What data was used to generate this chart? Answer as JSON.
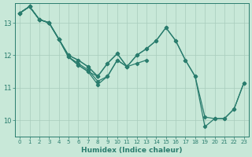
{
  "xlabel": "Humidex (Indice chaleur)",
  "bg_color": "#c8e8d8",
  "line_color": "#2a7d6e",
  "grid_color": "#a8ccbc",
  "xlim": [
    -0.5,
    23.5
  ],
  "ylim": [
    9.5,
    13.6
  ],
  "yticks": [
    10,
    11,
    12,
    13
  ],
  "xtick_labels": [
    "0",
    "1",
    "2",
    "3",
    "4",
    "5",
    "6",
    "7",
    "8",
    "9",
    "10",
    "11",
    "12",
    "13",
    "14",
    "15",
    "16",
    "17",
    "18",
    "19",
    "20",
    "21",
    "22",
    "23"
  ],
  "lines": [
    {
      "x": [
        0,
        1,
        2,
        3,
        4,
        5,
        6,
        7,
        8,
        9,
        10,
        11,
        12,
        13,
        14,
        15,
        16,
        17,
        18,
        19,
        20,
        21,
        22,
        23
      ],
      "y": [
        13.3,
        13.5,
        13.1,
        13.0,
        12.5,
        12.0,
        11.85,
        11.65,
        11.35,
        11.75,
        12.05,
        11.65,
        12.0,
        12.2,
        12.45,
        12.85,
        12.45,
        11.85,
        11.35,
        9.8,
        10.05,
        10.05,
        10.35,
        11.15
      ]
    },
    {
      "x": [
        0,
        1,
        2,
        3,
        4,
        5,
        6,
        7,
        8,
        9,
        10,
        11,
        12,
        13,
        14,
        15,
        16,
        17,
        18,
        19,
        20,
        21,
        22,
        23
      ],
      "y": [
        13.3,
        13.5,
        13.1,
        13.0,
        12.5,
        12.0,
        11.85,
        11.65,
        11.35,
        11.75,
        12.05,
        11.65,
        12.0,
        12.2,
        12.45,
        12.85,
        12.45,
        11.85,
        11.35,
        10.1,
        10.05,
        10.05,
        10.35,
        11.15
      ]
    },
    {
      "x": [
        0,
        1,
        2,
        3,
        4,
        5,
        6,
        7,
        8,
        9,
        10,
        11,
        12,
        13
      ],
      "y": [
        13.3,
        13.5,
        13.1,
        13.0,
        12.5,
        11.95,
        11.75,
        11.55,
        11.2,
        11.35,
        11.85,
        11.65,
        11.75,
        11.85
      ]
    },
    {
      "x": [
        0,
        1,
        2,
        3,
        4,
        5,
        6,
        7,
        8,
        9,
        10,
        11
      ],
      "y": [
        13.3,
        13.5,
        13.1,
        13.0,
        12.5,
        11.95,
        11.7,
        11.5,
        11.1,
        11.35,
        11.85,
        11.65
      ]
    },
    {
      "x": [
        0,
        1,
        2,
        3,
        4,
        5,
        6,
        7,
        8
      ],
      "y": [
        13.3,
        13.5,
        13.1,
        13.0,
        12.5,
        11.95,
        11.7,
        11.5,
        11.35
      ]
    }
  ]
}
